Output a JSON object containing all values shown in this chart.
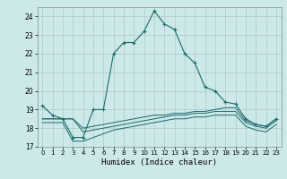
{
  "xlabel": "Humidex (Indice chaleur)",
  "xlim": [
    -0.5,
    23.5
  ],
  "ylim": [
    17,
    24.5
  ],
  "yticks": [
    17,
    18,
    19,
    20,
    21,
    22,
    23,
    24
  ],
  "xticks": [
    0,
    1,
    2,
    3,
    4,
    5,
    6,
    7,
    8,
    9,
    10,
    11,
    12,
    13,
    14,
    15,
    16,
    17,
    18,
    19,
    20,
    21,
    22,
    23
  ],
  "bg_color": "#cce8e8",
  "grid_color": "#b0c8c8",
  "line_color": "#1a6b6b",
  "series": [
    {
      "x": [
        0,
        1,
        2,
        3,
        4,
        5,
        6,
        7,
        8,
        9,
        10,
        11,
        12,
        13,
        14,
        15,
        16,
        17,
        18,
        19,
        20,
        21,
        22,
        23
      ],
      "y": [
        19.2,
        18.7,
        18.5,
        17.5,
        17.5,
        19.0,
        19.0,
        22.0,
        22.6,
        22.6,
        23.2,
        24.3,
        23.6,
        23.3,
        22.0,
        21.5,
        20.2,
        20.0,
        19.4,
        19.3,
        18.5,
        18.2,
        18.1,
        18.5
      ],
      "marker": "+"
    },
    {
      "x": [
        0,
        1,
        2,
        3,
        4,
        5,
        6,
        7,
        8,
        9,
        10,
        11,
        12,
        13,
        14,
        15,
        16,
        17,
        18,
        19,
        20,
        21,
        22,
        23
      ],
      "y": [
        18.5,
        18.5,
        18.5,
        18.5,
        18.0,
        18.1,
        18.2,
        18.3,
        18.4,
        18.5,
        18.6,
        18.7,
        18.7,
        18.8,
        18.8,
        18.9,
        18.9,
        19.0,
        19.1,
        19.1,
        18.4,
        18.2,
        18.1,
        18.5
      ],
      "marker": null
    },
    {
      "x": [
        0,
        1,
        2,
        3,
        4,
        5,
        6,
        7,
        8,
        9,
        10,
        11,
        12,
        13,
        14,
        15,
        16,
        17,
        18,
        19,
        20,
        21,
        22,
        23
      ],
      "y": [
        18.5,
        18.5,
        18.5,
        18.5,
        17.8,
        17.9,
        18.0,
        18.1,
        18.2,
        18.3,
        18.4,
        18.5,
        18.6,
        18.7,
        18.7,
        18.8,
        18.8,
        18.9,
        18.9,
        18.9,
        18.3,
        18.1,
        18.0,
        18.4
      ],
      "marker": null
    },
    {
      "x": [
        0,
        1,
        2,
        3,
        4,
        5,
        6,
        7,
        8,
        9,
        10,
        11,
        12,
        13,
        14,
        15,
        16,
        17,
        18,
        19,
        20,
        21,
        22,
        23
      ],
      "y": [
        18.3,
        18.3,
        18.3,
        17.3,
        17.3,
        17.5,
        17.7,
        17.9,
        18.0,
        18.1,
        18.2,
        18.3,
        18.4,
        18.5,
        18.5,
        18.6,
        18.6,
        18.7,
        18.7,
        18.7,
        18.1,
        17.9,
        17.8,
        18.2
      ],
      "marker": null
    }
  ]
}
